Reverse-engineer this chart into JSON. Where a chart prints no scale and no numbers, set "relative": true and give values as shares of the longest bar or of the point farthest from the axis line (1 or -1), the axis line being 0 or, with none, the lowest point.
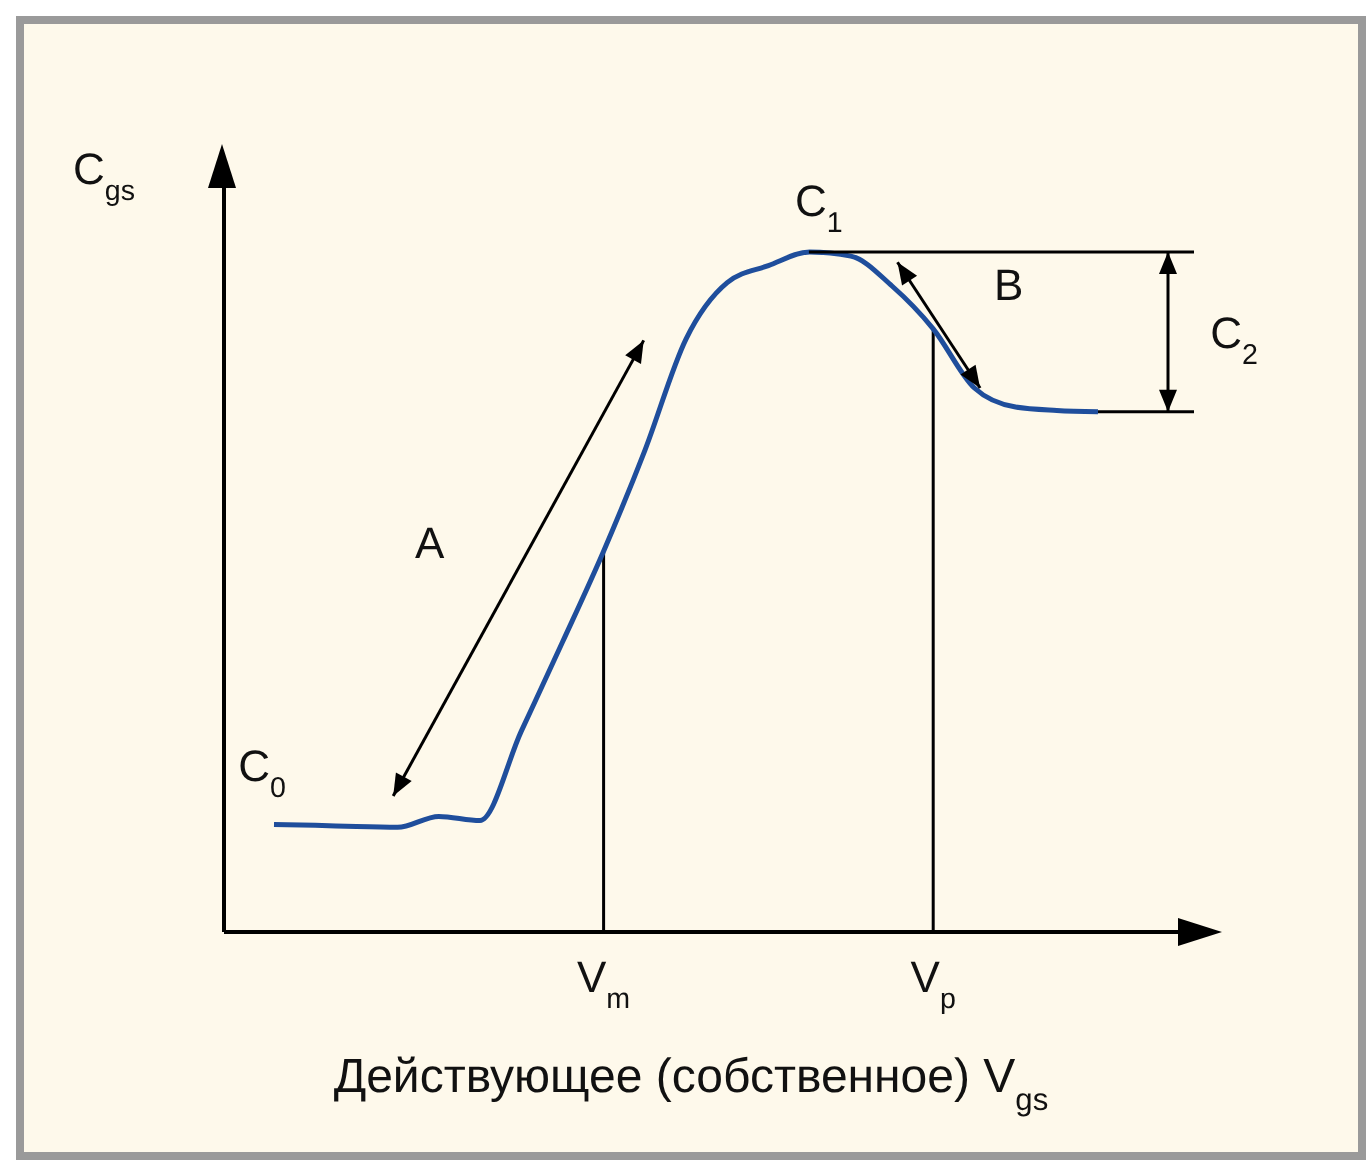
{
  "chart_data": {
    "type": "line",
    "relative": true,
    "xlabel": "Действующее (собственное) V$_{gs}$",
    "ylabel": "C$_{gs}$",
    "categories": [
      null,
      null,
      null,
      null,
      null,
      null,
      null,
      null,
      "V$_{m}$",
      null,
      null,
      null,
      null,
      null,
      null,
      null,
      "V$_{p}$",
      null,
      null,
      null,
      null
    ],
    "series": [
      {
        "color": "#1f4e9c",
        "values": [
          0.158,
          0.157,
          0.155,
          0.154,
          0.17,
          0.164,
          0.295,
          0.426,
          0.56,
          0.708,
          0.872,
          0.955,
          0.98,
          1,
          0.994,
          0.95,
          0.887,
          0.8,
          0.772,
          0.767,
          0.765
        ]
      }
    ],
    "ref_lines": [
      {
        "axis": "x",
        "value": "V$_{m}$",
        "color": "#000000"
      },
      {
        "axis": "x",
        "value": "V$_{p}$",
        "color": "#000000"
      }
    ],
    "annotations": [
      "C$_{0}$",
      "C$_{1}$",
      "C$_{2}$",
      "A",
      "B"
    ]
  }
}
